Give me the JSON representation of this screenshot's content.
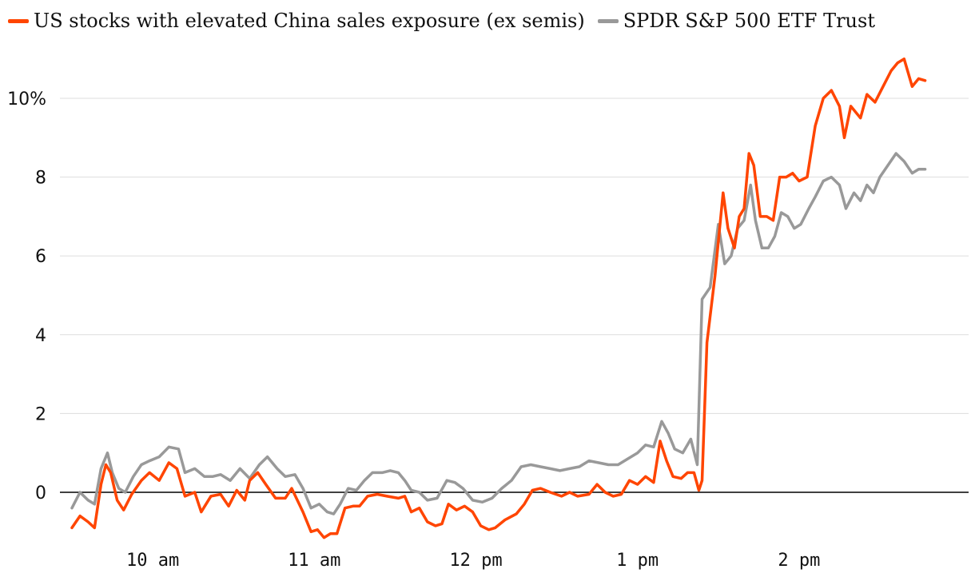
{
  "legend": {
    "series1_label": "US stocks with elevated China sales exposure (ex semis)",
    "series2_label": "SPDR S&P 500 ETF Trust"
  },
  "colors": {
    "series1": "#ff4500",
    "series2": "#999999",
    "grid": "#dddddd",
    "zero_line": "#000000"
  },
  "chart_data": {
    "type": "line",
    "title": "",
    "xlabel": "",
    "ylabel": "",
    "ylim": [
      -1.5,
      11
    ],
    "y_ticks": [
      0,
      2,
      4,
      6,
      8,
      10
    ],
    "y_tick_labels": [
      "0",
      "2",
      "4",
      "6",
      "8",
      "10%"
    ],
    "x_unit": "hours since midnight",
    "xlim": [
      9.5,
      14.98
    ],
    "x_ticks": [
      10,
      11,
      12,
      13,
      14
    ],
    "x_tick_labels": [
      "10 am",
      "11 am",
      "12 pm",
      "1 pm",
      "2 pm"
    ],
    "grid": true,
    "legend_position": "top",
    "series": [
      {
        "name": "US stocks with elevated China sales exposure (ex semis)",
        "color": "#ff4500",
        "points": [
          [
            9.5,
            -0.9
          ],
          [
            9.55,
            -0.6
          ],
          [
            9.6,
            -0.75
          ],
          [
            9.64,
            -0.9
          ],
          [
            9.68,
            0.2
          ],
          [
            9.71,
            0.7
          ],
          [
            9.74,
            0.5
          ],
          [
            9.78,
            -0.2
          ],
          [
            9.82,
            -0.45
          ],
          [
            9.87,
            -0.05
          ],
          [
            9.93,
            0.3
          ],
          [
            9.98,
            0.5
          ],
          [
            10.04,
            0.3
          ],
          [
            10.1,
            0.75
          ],
          [
            10.15,
            0.6
          ],
          [
            10.2,
            -0.1
          ],
          [
            10.26,
            0.0
          ],
          [
            10.3,
            -0.5
          ],
          [
            10.36,
            -0.1
          ],
          [
            10.42,
            -0.05
          ],
          [
            10.47,
            -0.35
          ],
          [
            10.52,
            0.05
          ],
          [
            10.57,
            -0.2
          ],
          [
            10.6,
            0.3
          ],
          [
            10.65,
            0.5
          ],
          [
            10.7,
            0.2
          ],
          [
            10.76,
            -0.15
          ],
          [
            10.82,
            -0.15
          ],
          [
            10.86,
            0.1
          ],
          [
            10.93,
            -0.5
          ],
          [
            10.98,
            -1.0
          ],
          [
            11.02,
            -0.95
          ],
          [
            11.06,
            -1.15
          ],
          [
            11.1,
            -1.05
          ],
          [
            11.14,
            -1.05
          ],
          [
            11.19,
            -0.4
          ],
          [
            11.24,
            -0.35
          ],
          [
            11.28,
            -0.35
          ],
          [
            11.33,
            -0.1
          ],
          [
            11.39,
            -0.05
          ],
          [
            11.45,
            -0.1
          ],
          [
            11.52,
            -0.15
          ],
          [
            11.56,
            -0.1
          ],
          [
            11.6,
            -0.5
          ],
          [
            11.65,
            -0.4
          ],
          [
            11.7,
            -0.75
          ],
          [
            11.75,
            -0.85
          ],
          [
            11.79,
            -0.8
          ],
          [
            11.83,
            -0.3
          ],
          [
            11.88,
            -0.45
          ],
          [
            11.93,
            -0.35
          ],
          [
            11.98,
            -0.5
          ],
          [
            12.03,
            -0.85
          ],
          [
            12.08,
            -0.95
          ],
          [
            12.12,
            -0.9
          ],
          [
            12.18,
            -0.7
          ],
          [
            12.25,
            -0.55
          ],
          [
            12.3,
            -0.3
          ],
          [
            12.35,
            0.05
          ],
          [
            12.4,
            0.1
          ],
          [
            12.46,
            0.0
          ],
          [
            12.53,
            -0.1
          ],
          [
            12.58,
            0.0
          ],
          [
            12.63,
            -0.1
          ],
          [
            12.7,
            -0.05
          ],
          [
            12.75,
            0.2
          ],
          [
            12.8,
            0.0
          ],
          [
            12.85,
            -0.1
          ],
          [
            12.9,
            -0.05
          ],
          [
            12.95,
            0.3
          ],
          [
            13.0,
            0.2
          ],
          [
            13.05,
            0.4
          ],
          [
            13.1,
            0.25
          ],
          [
            13.14,
            1.3
          ],
          [
            13.18,
            0.8
          ],
          [
            13.22,
            0.4
          ],
          [
            13.27,
            0.35
          ],
          [
            13.31,
            0.5
          ],
          [
            13.35,
            0.5
          ],
          [
            13.38,
            0.05
          ],
          [
            13.4,
            0.3
          ],
          [
            13.43,
            3.8
          ],
          [
            13.48,
            5.5
          ],
          [
            13.53,
            7.6
          ],
          [
            13.56,
            6.7
          ],
          [
            13.6,
            6.2
          ],
          [
            13.63,
            7.0
          ],
          [
            13.66,
            7.2
          ],
          [
            13.69,
            8.6
          ],
          [
            13.72,
            8.3
          ],
          [
            13.76,
            7.0
          ],
          [
            13.8,
            7.0
          ],
          [
            13.84,
            6.9
          ],
          [
            13.88,
            8.0
          ],
          [
            13.92,
            8.0
          ],
          [
            13.96,
            8.1
          ],
          [
            14.0,
            7.9
          ],
          [
            14.05,
            8.0
          ],
          [
            14.1,
            9.3
          ],
          [
            14.15,
            10.0
          ],
          [
            14.2,
            10.2
          ],
          [
            14.25,
            9.8
          ],
          [
            14.28,
            9.0
          ],
          [
            14.32,
            9.8
          ],
          [
            14.38,
            9.5
          ],
          [
            14.42,
            10.1
          ],
          [
            14.47,
            9.9
          ],
          [
            14.52,
            10.3
          ],
          [
            14.57,
            10.7
          ],
          [
            14.61,
            10.9
          ],
          [
            14.65,
            11.0
          ],
          [
            14.7,
            10.3
          ],
          [
            14.74,
            10.5
          ],
          [
            14.78,
            10.45
          ]
        ]
      },
      {
        "name": "SPDR S&P 500 ETF Trust",
        "color": "#999999",
        "points": [
          [
            9.5,
            -0.4
          ],
          [
            9.55,
            0.0
          ],
          [
            9.6,
            -0.2
          ],
          [
            9.64,
            -0.3
          ],
          [
            9.68,
            0.6
          ],
          [
            9.72,
            1.0
          ],
          [
            9.75,
            0.5
          ],
          [
            9.79,
            0.1
          ],
          [
            9.83,
            0.0
          ],
          [
            9.88,
            0.4
          ],
          [
            9.93,
            0.7
          ],
          [
            9.98,
            0.8
          ],
          [
            10.04,
            0.9
          ],
          [
            10.1,
            1.15
          ],
          [
            10.16,
            1.1
          ],
          [
            10.2,
            0.5
          ],
          [
            10.26,
            0.6
          ],
          [
            10.32,
            0.4
          ],
          [
            10.37,
            0.4
          ],
          [
            10.42,
            0.45
          ],
          [
            10.48,
            0.3
          ],
          [
            10.54,
            0.6
          ],
          [
            10.6,
            0.35
          ],
          [
            10.66,
            0.7
          ],
          [
            10.71,
            0.9
          ],
          [
            10.77,
            0.6
          ],
          [
            10.82,
            0.4
          ],
          [
            10.88,
            0.45
          ],
          [
            10.93,
            0.1
          ],
          [
            10.98,
            -0.4
          ],
          [
            11.03,
            -0.3
          ],
          [
            11.08,
            -0.5
          ],
          [
            11.12,
            -0.55
          ],
          [
            11.16,
            -0.3
          ],
          [
            11.21,
            0.1
          ],
          [
            11.26,
            0.05
          ],
          [
            11.31,
            0.3
          ],
          [
            11.36,
            0.5
          ],
          [
            11.42,
            0.5
          ],
          [
            11.47,
            0.55
          ],
          [
            11.52,
            0.5
          ],
          [
            11.56,
            0.3
          ],
          [
            11.6,
            0.05
          ],
          [
            11.65,
            0.0
          ],
          [
            11.7,
            -0.2
          ],
          [
            11.76,
            -0.15
          ],
          [
            11.82,
            0.3
          ],
          [
            11.87,
            0.25
          ],
          [
            11.92,
            0.1
          ],
          [
            11.98,
            -0.2
          ],
          [
            12.04,
            -0.25
          ],
          [
            12.1,
            -0.15
          ],
          [
            12.16,
            0.1
          ],
          [
            12.22,
            0.3
          ],
          [
            12.28,
            0.65
          ],
          [
            12.34,
            0.7
          ],
          [
            12.4,
            0.65
          ],
          [
            12.46,
            0.6
          ],
          [
            12.52,
            0.55
          ],
          [
            12.58,
            0.6
          ],
          [
            12.64,
            0.65
          ],
          [
            12.7,
            0.8
          ],
          [
            12.76,
            0.75
          ],
          [
            12.82,
            0.7
          ],
          [
            12.88,
            0.7
          ],
          [
            12.94,
            0.85
          ],
          [
            13.0,
            1.0
          ],
          [
            13.05,
            1.2
          ],
          [
            13.1,
            1.15
          ],
          [
            13.15,
            1.8
          ],
          [
            13.19,
            1.5
          ],
          [
            13.23,
            1.1
          ],
          [
            13.28,
            1.0
          ],
          [
            13.33,
            1.35
          ],
          [
            13.37,
            0.7
          ],
          [
            13.4,
            4.9
          ],
          [
            13.45,
            5.2
          ],
          [
            13.5,
            6.8
          ],
          [
            13.54,
            5.8
          ],
          [
            13.58,
            6.0
          ],
          [
            13.62,
            6.7
          ],
          [
            13.66,
            6.9
          ],
          [
            13.7,
            7.8
          ],
          [
            13.73,
            6.9
          ],
          [
            13.77,
            6.2
          ],
          [
            13.81,
            6.2
          ],
          [
            13.85,
            6.5
          ],
          [
            13.89,
            7.1
          ],
          [
            13.93,
            7.0
          ],
          [
            13.97,
            6.7
          ],
          [
            14.01,
            6.8
          ],
          [
            14.06,
            7.2
          ],
          [
            14.1,
            7.5
          ],
          [
            14.15,
            7.9
          ],
          [
            14.2,
            8.0
          ],
          [
            14.25,
            7.8
          ],
          [
            14.29,
            7.2
          ],
          [
            14.34,
            7.6
          ],
          [
            14.38,
            7.4
          ],
          [
            14.42,
            7.8
          ],
          [
            14.46,
            7.6
          ],
          [
            14.5,
            8.0
          ],
          [
            14.55,
            8.3
          ],
          [
            14.6,
            8.6
          ],
          [
            14.65,
            8.4
          ],
          [
            14.7,
            8.1
          ],
          [
            14.74,
            8.2
          ],
          [
            14.78,
            8.2
          ]
        ]
      }
    ]
  }
}
